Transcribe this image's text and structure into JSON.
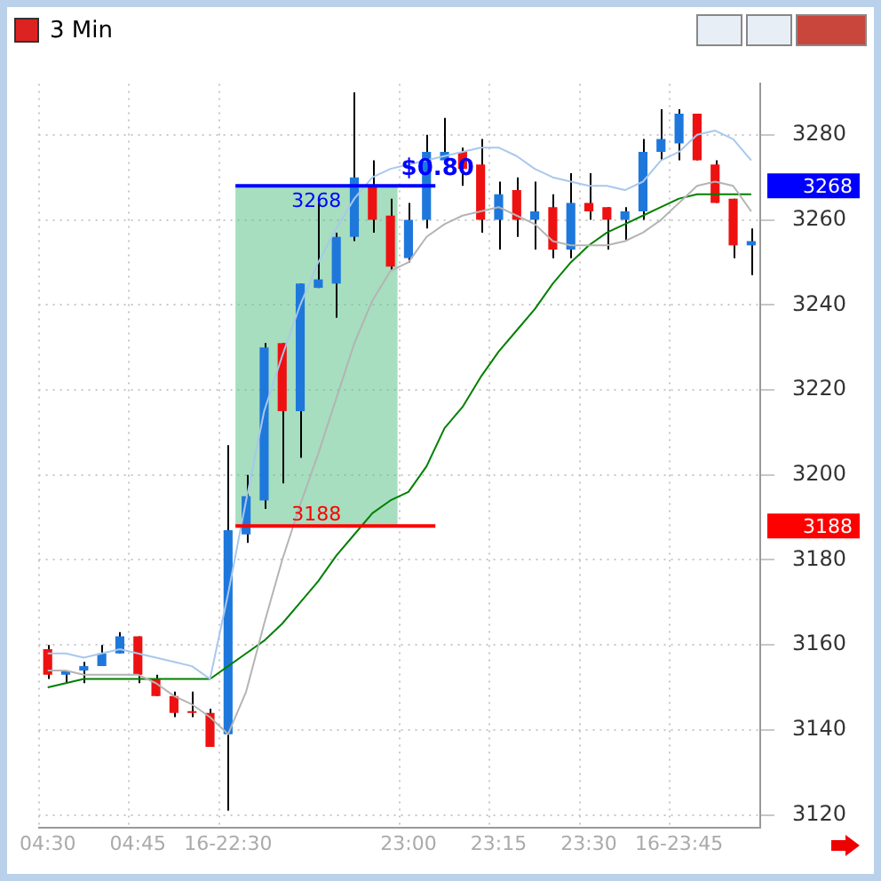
{
  "chart_data": {
    "type": "candlestick",
    "title": "3 Min",
    "categories": [
      "04:30",
      null,
      null,
      null,
      null,
      "04:45",
      null,
      null,
      null,
      null,
      "16-22:30",
      null,
      null,
      null,
      null,
      null,
      null,
      null,
      null,
      null,
      "23:00",
      null,
      null,
      null,
      null,
      "23:15",
      null,
      null,
      null,
      null,
      "23:30",
      null,
      null,
      null,
      null,
      "16-23:45",
      null,
      null,
      null,
      null
    ],
    "ohlc": [
      [
        3159,
        3160,
        3152,
        3153
      ],
      [
        3153,
        3154,
        3151,
        3154
      ],
      [
        3154,
        3156,
        3151,
        3155
      ],
      [
        3155,
        3160,
        3155,
        3158
      ],
      [
        3158,
        3163,
        3158,
        3162
      ],
      [
        3162,
        3162,
        3151,
        3153
      ],
      [
        3152,
        3153,
        3148,
        3148
      ],
      [
        3148,
        3149,
        3143,
        3144
      ],
      [
        3144,
        3149,
        3143,
        3144
      ],
      [
        3144,
        3145,
        3136,
        3136
      ],
      [
        3139,
        3207,
        3121,
        3187
      ],
      [
        3186,
        3200,
        3184,
        3195
      ],
      [
        3194,
        3231,
        3192,
        3230
      ],
      [
        3231,
        3231,
        3198,
        3215
      ],
      [
        3215,
        3245,
        3204,
        3245
      ],
      [
        3244,
        3264,
        3244,
        3246
      ],
      [
        3245,
        3257,
        3237,
        3256
      ],
      [
        3256,
        3290,
        3255,
        3270
      ],
      [
        3268,
        3274,
        3257,
        3260
      ],
      [
        3261,
        3265,
        3248,
        3249
      ],
      [
        3251,
        3264,
        3250,
        3260
      ],
      [
        3260,
        3280,
        3258,
        3276
      ],
      [
        3274,
        3284,
        3274,
        3276
      ],
      [
        3276,
        3277,
        3268,
        3272
      ],
      [
        3273,
        3279,
        3257,
        3260
      ],
      [
        3260,
        3269,
        3253,
        3266
      ],
      [
        3267,
        3270,
        3256,
        3260
      ],
      [
        3260,
        3269,
        3253,
        3262
      ],
      [
        3263,
        3266,
        3251,
        3253
      ],
      [
        3253,
        3271,
        3251,
        3264
      ],
      [
        3264,
        3271,
        3260,
        3262
      ],
      [
        3263,
        3263,
        3253,
        3260
      ],
      [
        3260,
        3263,
        3255,
        3262
      ],
      [
        3262,
        3279,
        3260,
        3276
      ],
      [
        3276,
        3286,
        3274,
        3279
      ],
      [
        3278,
        3286,
        3274,
        3285
      ],
      [
        3285,
        3285,
        3274,
        3274
      ],
      [
        3273,
        3274,
        3264,
        3264
      ],
      [
        3265,
        3265,
        3251,
        3254
      ],
      [
        3254,
        3258,
        3247,
        3255
      ]
    ],
    "colors": [
      "#ee1111",
      "#1e78dc",
      "#1e78dc",
      "#1e78dc",
      "#1e78dc",
      "#ee1111",
      "#ee1111",
      "#ee1111",
      "#ee1111",
      "#ee1111",
      "#1e78dc",
      "#1e78dc",
      "#1e78dc",
      "#ee1111",
      "#1e78dc",
      "#1e78dc",
      "#1e78dc",
      "#1e78dc",
      "#ee1111",
      "#ee1111",
      "#1e78dc",
      "#1e78dc",
      "#1e78dc",
      "#ee1111",
      "#ee1111",
      "#1e78dc",
      "#ee1111",
      "#1e78dc",
      "#ee1111",
      "#1e78dc",
      "#ee1111",
      "#ee1111",
      "#1e78dc",
      "#1e78dc",
      "#1e78dc",
      "#1e78dc",
      "#ee1111",
      "#ee1111",
      "#ee1111",
      "#1e78dc"
    ],
    "series": [
      {
        "type": "line",
        "color": "#a8c8ec",
        "values": [
          3158,
          3158,
          3157,
          3158,
          3159,
          3158,
          3157,
          3156,
          3155,
          3152,
          3172,
          3194,
          3215,
          3228,
          3240,
          3250,
          3258,
          3265,
          3270,
          3272,
          3273,
          3274,
          3275,
          3276,
          3277,
          3277,
          3275,
          3272,
          3270,
          3269,
          3268,
          3268,
          3267,
          3269,
          3274,
          3276,
          3280,
          3281,
          3279,
          3274
        ]
      },
      {
        "type": "line",
        "color": "#b4b4b4",
        "values": [
          3154,
          3154,
          3153,
          3153,
          3153,
          3153,
          3151,
          3148,
          3146,
          3143,
          3139,
          3149,
          3165,
          3180,
          3193,
          3205,
          3218,
          3231,
          3241,
          3248,
          3250,
          3256,
          3259,
          3261,
          3262,
          3263,
          3261,
          3259,
          3255,
          3254,
          3254,
          3254,
          3255,
          3257,
          3260,
          3264,
          3268,
          3269,
          3268,
          3262
        ]
      },
      {
        "type": "line",
        "color": "#008000",
        "values": [
          3150,
          3151,
          3152,
          3152,
          3152,
          3152,
          3152,
          3152,
          3152,
          3152,
          3155,
          3158,
          3161,
          3165,
          3170,
          3175,
          3181,
          3186,
          3191,
          3194,
          3196,
          3202,
          3211,
          3216,
          3223,
          3229,
          3234,
          3239,
          3245,
          3250,
          3254,
          3257,
          3259,
          3261,
          3263,
          3265,
          3266,
          3266,
          3266,
          3266
        ]
      }
    ],
    "ylim": [
      3117,
      3292
    ],
    "yticks": [
      3120,
      3140,
      3160,
      3180,
      3200,
      3220,
      3240,
      3260,
      3280
    ],
    "grid": true,
    "legend": false,
    "ref_lines": [
      {
        "axis": "y",
        "value": 3268,
        "label": "3268",
        "color": "#0000ff"
      },
      {
        "axis": "y",
        "value": 3188,
        "label": "3188",
        "color": "#ff0000"
      }
    ],
    "bands": [
      {
        "axis": "y",
        "from": 3188,
        "to": 3268,
        "color": "#5cc28a"
      }
    ],
    "annotations": [
      "$0.80"
    ]
  }
}
